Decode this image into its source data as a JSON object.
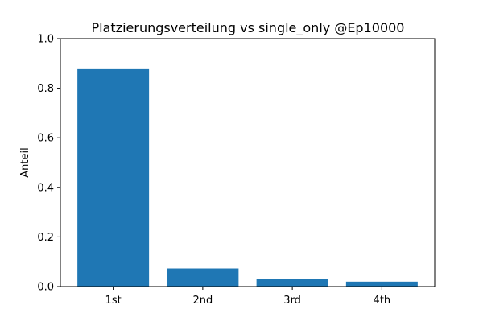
{
  "chart_data": {
    "type": "bar",
    "title": "Platzierungsverteilung vs single_only @Ep10000",
    "xlabel": "",
    "ylabel": "Anteil",
    "categories": [
      "1st",
      "2nd",
      "3rd",
      "4th"
    ],
    "values": [
      0.877,
      0.073,
      0.03,
      0.02
    ],
    "ylim": [
      0,
      1.0
    ],
    "yticks": [
      "0.0",
      "0.2",
      "0.4",
      "0.6",
      "0.8",
      "1.0"
    ],
    "bar_color": "#1f77b4",
    "grid": false
  }
}
